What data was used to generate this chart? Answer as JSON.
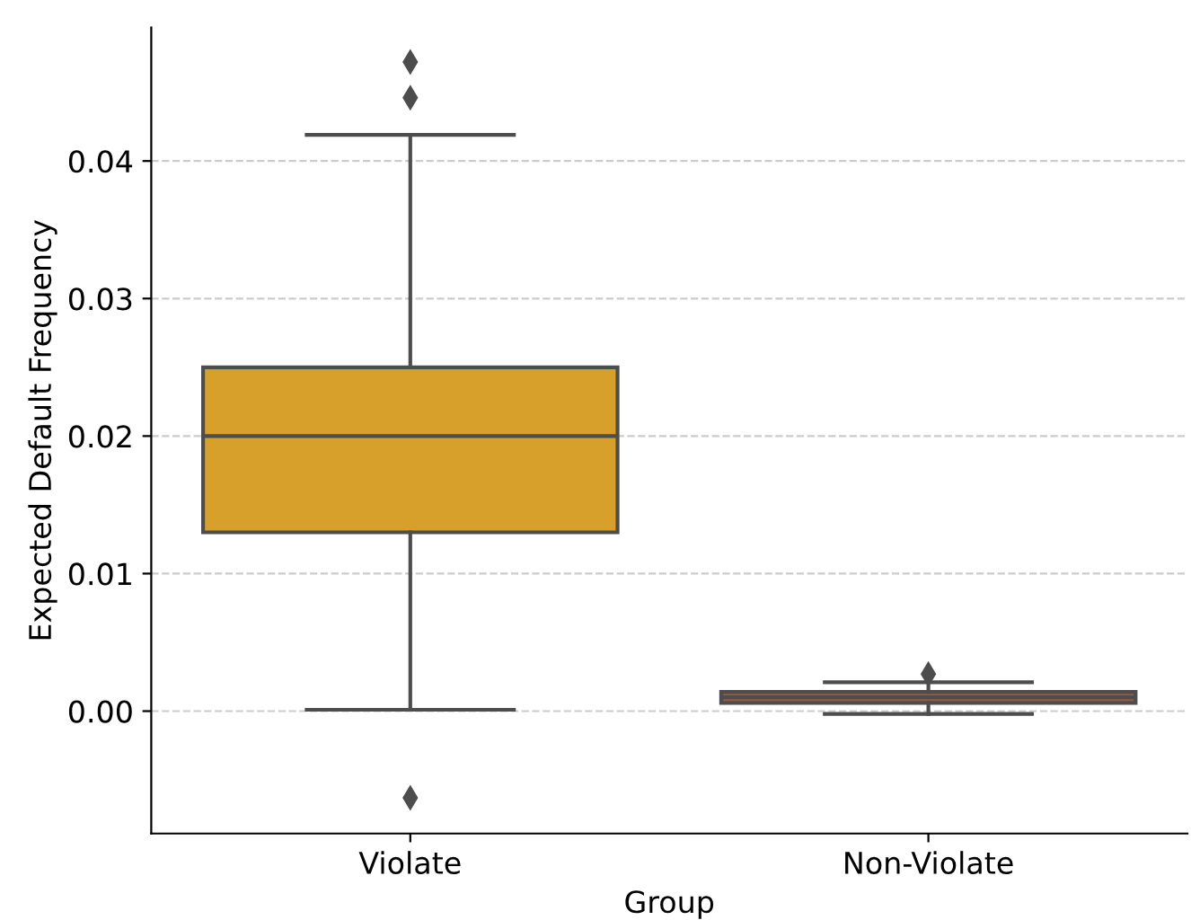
{
  "chart_data": {
    "type": "box",
    "xlabel": "Group",
    "ylabel": "Expected Default Frequency",
    "categories": [
      "Violate",
      "Non-Violate"
    ],
    "colors": [
      "#d6a02a",
      "#9c5a3c"
    ],
    "boxes": [
      {
        "low": 0.0001,
        "q1": 0.013,
        "median": 0.02,
        "q3": 0.025,
        "high": 0.0419,
        "outliers": [
          0.0472,
          0.0446,
          -0.0063
        ]
      },
      {
        "low": -0.0002,
        "q1": 0.0006,
        "median": 0.001,
        "q3": 0.0014,
        "high": 0.0021,
        "outliers": [
          0.0027
        ]
      }
    ],
    "ylim": [
      -0.0089,
      0.0497
    ],
    "yticks": [
      {
        "value": 0,
        "label": "0.00"
      },
      {
        "value": 0.01,
        "label": "0.01"
      },
      {
        "value": 0.02,
        "label": "0.02"
      },
      {
        "value": 0.03,
        "label": "0.03"
      },
      {
        "value": 0.04,
        "label": "0.04"
      }
    ],
    "grid": "y",
    "marker": "diamond"
  }
}
